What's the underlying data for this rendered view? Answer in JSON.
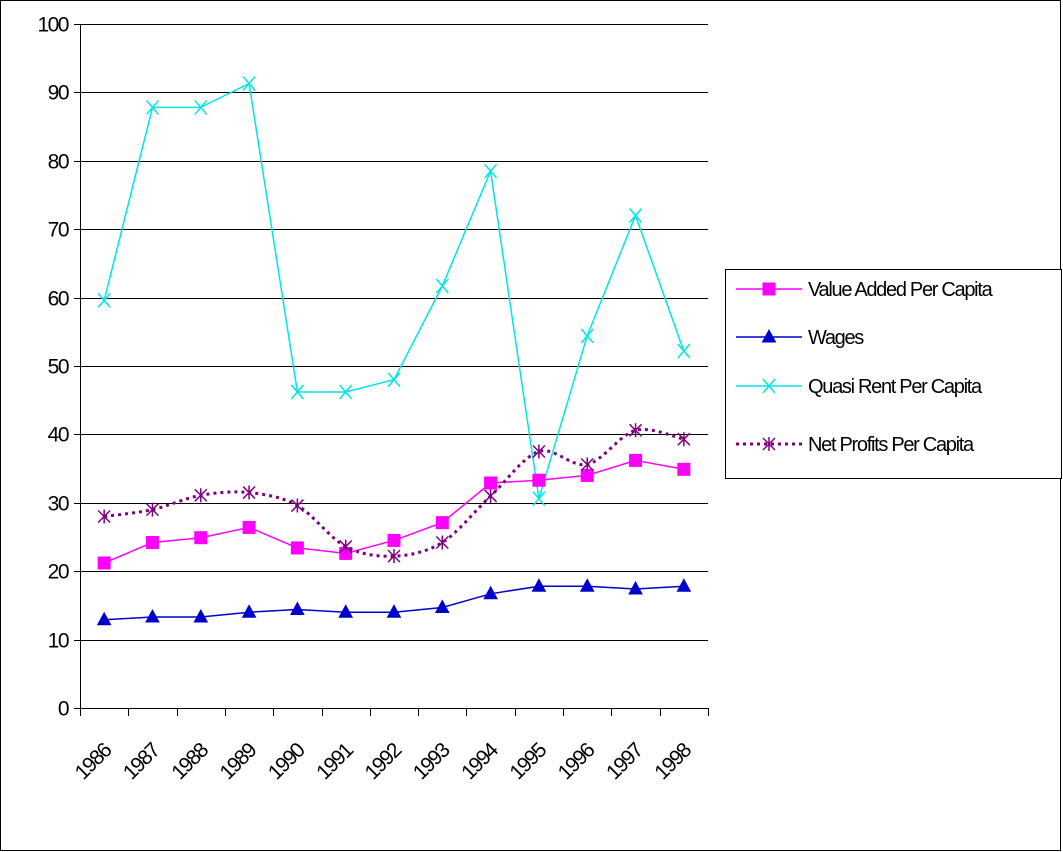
{
  "chart_data": {
    "type": "line",
    "title": "",
    "xlabel": "",
    "ylabel": "",
    "x": [
      "1986",
      "1987",
      "1988",
      "1989",
      "1990",
      "1991",
      "1992",
      "1993",
      "1994",
      "1995",
      "1996",
      "1997",
      "1998"
    ],
    "ylim": [
      0,
      100
    ],
    "yticks": [
      "0",
      "10",
      "20",
      "30",
      "40",
      "50",
      "60",
      "70",
      "80",
      "90",
      "100"
    ],
    "grid": "horizontal",
    "legend_position": "right",
    "series": [
      {
        "name": "Value Added Per Capita",
        "color": "#ff00ff",
        "marker": "square",
        "line_style": "solid",
        "values": [
          21.2,
          24.2,
          24.9,
          26.4,
          23.4,
          22.6,
          24.5,
          27.1,
          32.9,
          33.3,
          34.0,
          36.2,
          34.9
        ]
      },
      {
        "name": "Wages",
        "color": "#0000cc",
        "marker": "triangle",
        "line_style": "solid",
        "values": [
          12.9,
          13.3,
          13.3,
          14.0,
          14.4,
          14.0,
          14.0,
          14.7,
          16.7,
          17.8,
          17.8,
          17.4,
          17.8
        ]
      },
      {
        "name": "Quasi Rent Per Capita",
        "color": "#00e5e5",
        "marker": "x",
        "line_style": "solid",
        "values": [
          59.6,
          87.8,
          87.8,
          91.3,
          46.2,
          46.2,
          48.0,
          61.7,
          78.5,
          30.6,
          54.4,
          72.0,
          52.2
        ]
      },
      {
        "name": "Net Profits Per Capita",
        "color": "#800080",
        "marker": "asterisk",
        "line_style": "dotted",
        "values": [
          28.0,
          29.0,
          31.1,
          31.5,
          29.6,
          23.6,
          22.2,
          24.2,
          31.0,
          37.5,
          35.6,
          40.6,
          39.3
        ]
      }
    ]
  }
}
